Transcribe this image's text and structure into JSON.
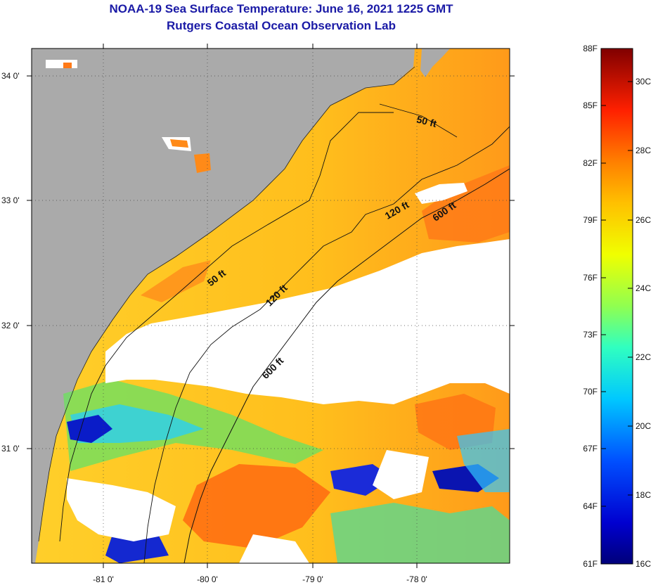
{
  "title": "NOAA-19 Sea Surface Temperature:  June 16, 2021 1225 GMT",
  "subtitle": "Rutgers Coastal Ocean Observation Lab",
  "map": {
    "lat_ticks": [
      "34 0'",
      "33 0'",
      "32 0'",
      "31 0'"
    ],
    "lon_ticks": [
      "-81 0'",
      "-80 0'",
      "-79 0'",
      "-78 0'"
    ],
    "contours": [
      "50 ft",
      "50 ft",
      "120 ft",
      "120 ft",
      "600 ft",
      "600 ft"
    ]
  },
  "colorbar": {
    "fahrenheit": [
      "88F",
      "85F",
      "82F",
      "79F",
      "76F",
      "73F",
      "70F",
      "67F",
      "64F",
      "61F"
    ],
    "celsius": [
      "30C",
      "28C",
      "26C",
      "24C",
      "22C",
      "20C",
      "18C",
      "16C"
    ]
  },
  "colors": {
    "land": "#aaaaaa",
    "cloud": "#ffffff",
    "title": "#1a1aa6"
  }
}
